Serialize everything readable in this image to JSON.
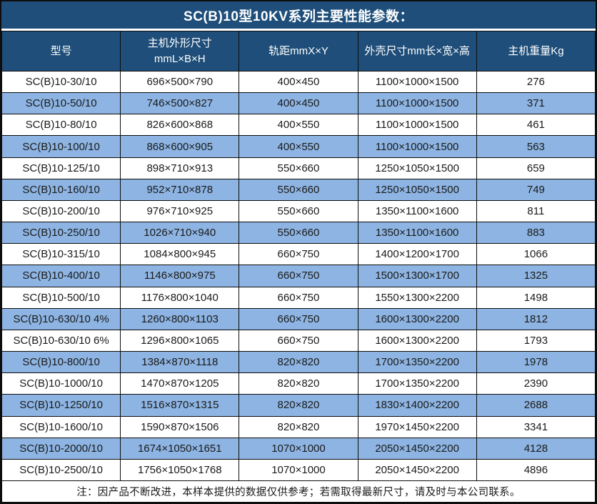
{
  "title": "SC(B)10型10KV系列主要性能参数：",
  "colors": {
    "header_bg": "#1E4E79",
    "row_alt_bg": "#8DB4E2",
    "row_bg": "#FFFFFF",
    "border": "#0D0D0D",
    "header_text": "#FFFFFF",
    "body_text": "#1A1A1A"
  },
  "table": {
    "columns": [
      {
        "label": "型号"
      },
      {
        "line1": "主机外形尺寸",
        "line2": "mmL×B×H"
      },
      {
        "label": "轨距mmX×Y"
      },
      {
        "label": "外壳尺寸mm长×宽×高"
      },
      {
        "label": "主机重量Kg"
      }
    ],
    "rows": [
      [
        "SC(B)10-30/10",
        "696×500×790",
        "400×450",
        "1100×1000×1500",
        "276"
      ],
      [
        "SC(B)10-50/10",
        "746×500×827",
        "400×450",
        "1100×1000×1500",
        "371"
      ],
      [
        "SC(B)10-80/10",
        "826×600×868",
        "400×550",
        "1100×1000×1500",
        "461"
      ],
      [
        "SC(B)10-100/10",
        "868×600×905",
        "400×550",
        "1100×1000×1500",
        "563"
      ],
      [
        "SC(B)10-125/10",
        "898×710×913",
        "550×660",
        "1250×1050×1500",
        "659"
      ],
      [
        "SC(B)10-160/10",
        "952×710×878",
        "550×660",
        "1250×1050×1500",
        "749"
      ],
      [
        "SC(B)10-200/10",
        "976×710×925",
        "550×660",
        "1350×1100×1600",
        "811"
      ],
      [
        "SC(B)10-250/10",
        "1026×710×940",
        "550×660",
        "1350×1100×1600",
        "883"
      ],
      [
        "SC(B)10-315/10",
        "1084×800×945",
        "660×750",
        "1400×1200×1700",
        "1066"
      ],
      [
        "SC(B)10-400/10",
        "1146×800×975",
        "660×750",
        "1500×1300×1700",
        "1325"
      ],
      [
        "SC(B)10-500/10",
        "1176×800×1040",
        "660×750",
        "1550×1300×2200",
        "1498"
      ],
      [
        "SC(B)10-630/10 4%",
        "1260×800×1103",
        "660×750",
        "1600×1300×2200",
        "1812"
      ],
      [
        "SC(B)10-630/10 6%",
        "1296×800×1065",
        "660×750",
        "1600×1300×2200",
        "1793"
      ],
      [
        "SC(B)10-800/10",
        "1384×870×1118",
        "820×820",
        "1700×1350×2200",
        "1978"
      ],
      [
        "SC(B)10-1000/10",
        "1470×870×1205",
        "820×820",
        "1700×1350×2200",
        "2390"
      ],
      [
        "SC(B)10-1250/10",
        "1516×870×1315",
        "820×820",
        "1830×1400×2200",
        "2688"
      ],
      [
        "SC(B)10-1600/10",
        "1590×870×1506",
        "820×820",
        "1970×1450×2200",
        "3341"
      ],
      [
        "SC(B)10-2000/10",
        "1674×1050×1651",
        "1070×1000",
        "2050×1450×2200",
        "4128"
      ],
      [
        "SC(B)10-2500/10",
        "1756×1050×1768",
        "1070×1000",
        "2050×1450×2200",
        "4896"
      ]
    ]
  },
  "footer_note": "注：因产品不断改进，本样本提供的数据仅供参考；若需取得最新尺寸，请及时与本公司联系。"
}
